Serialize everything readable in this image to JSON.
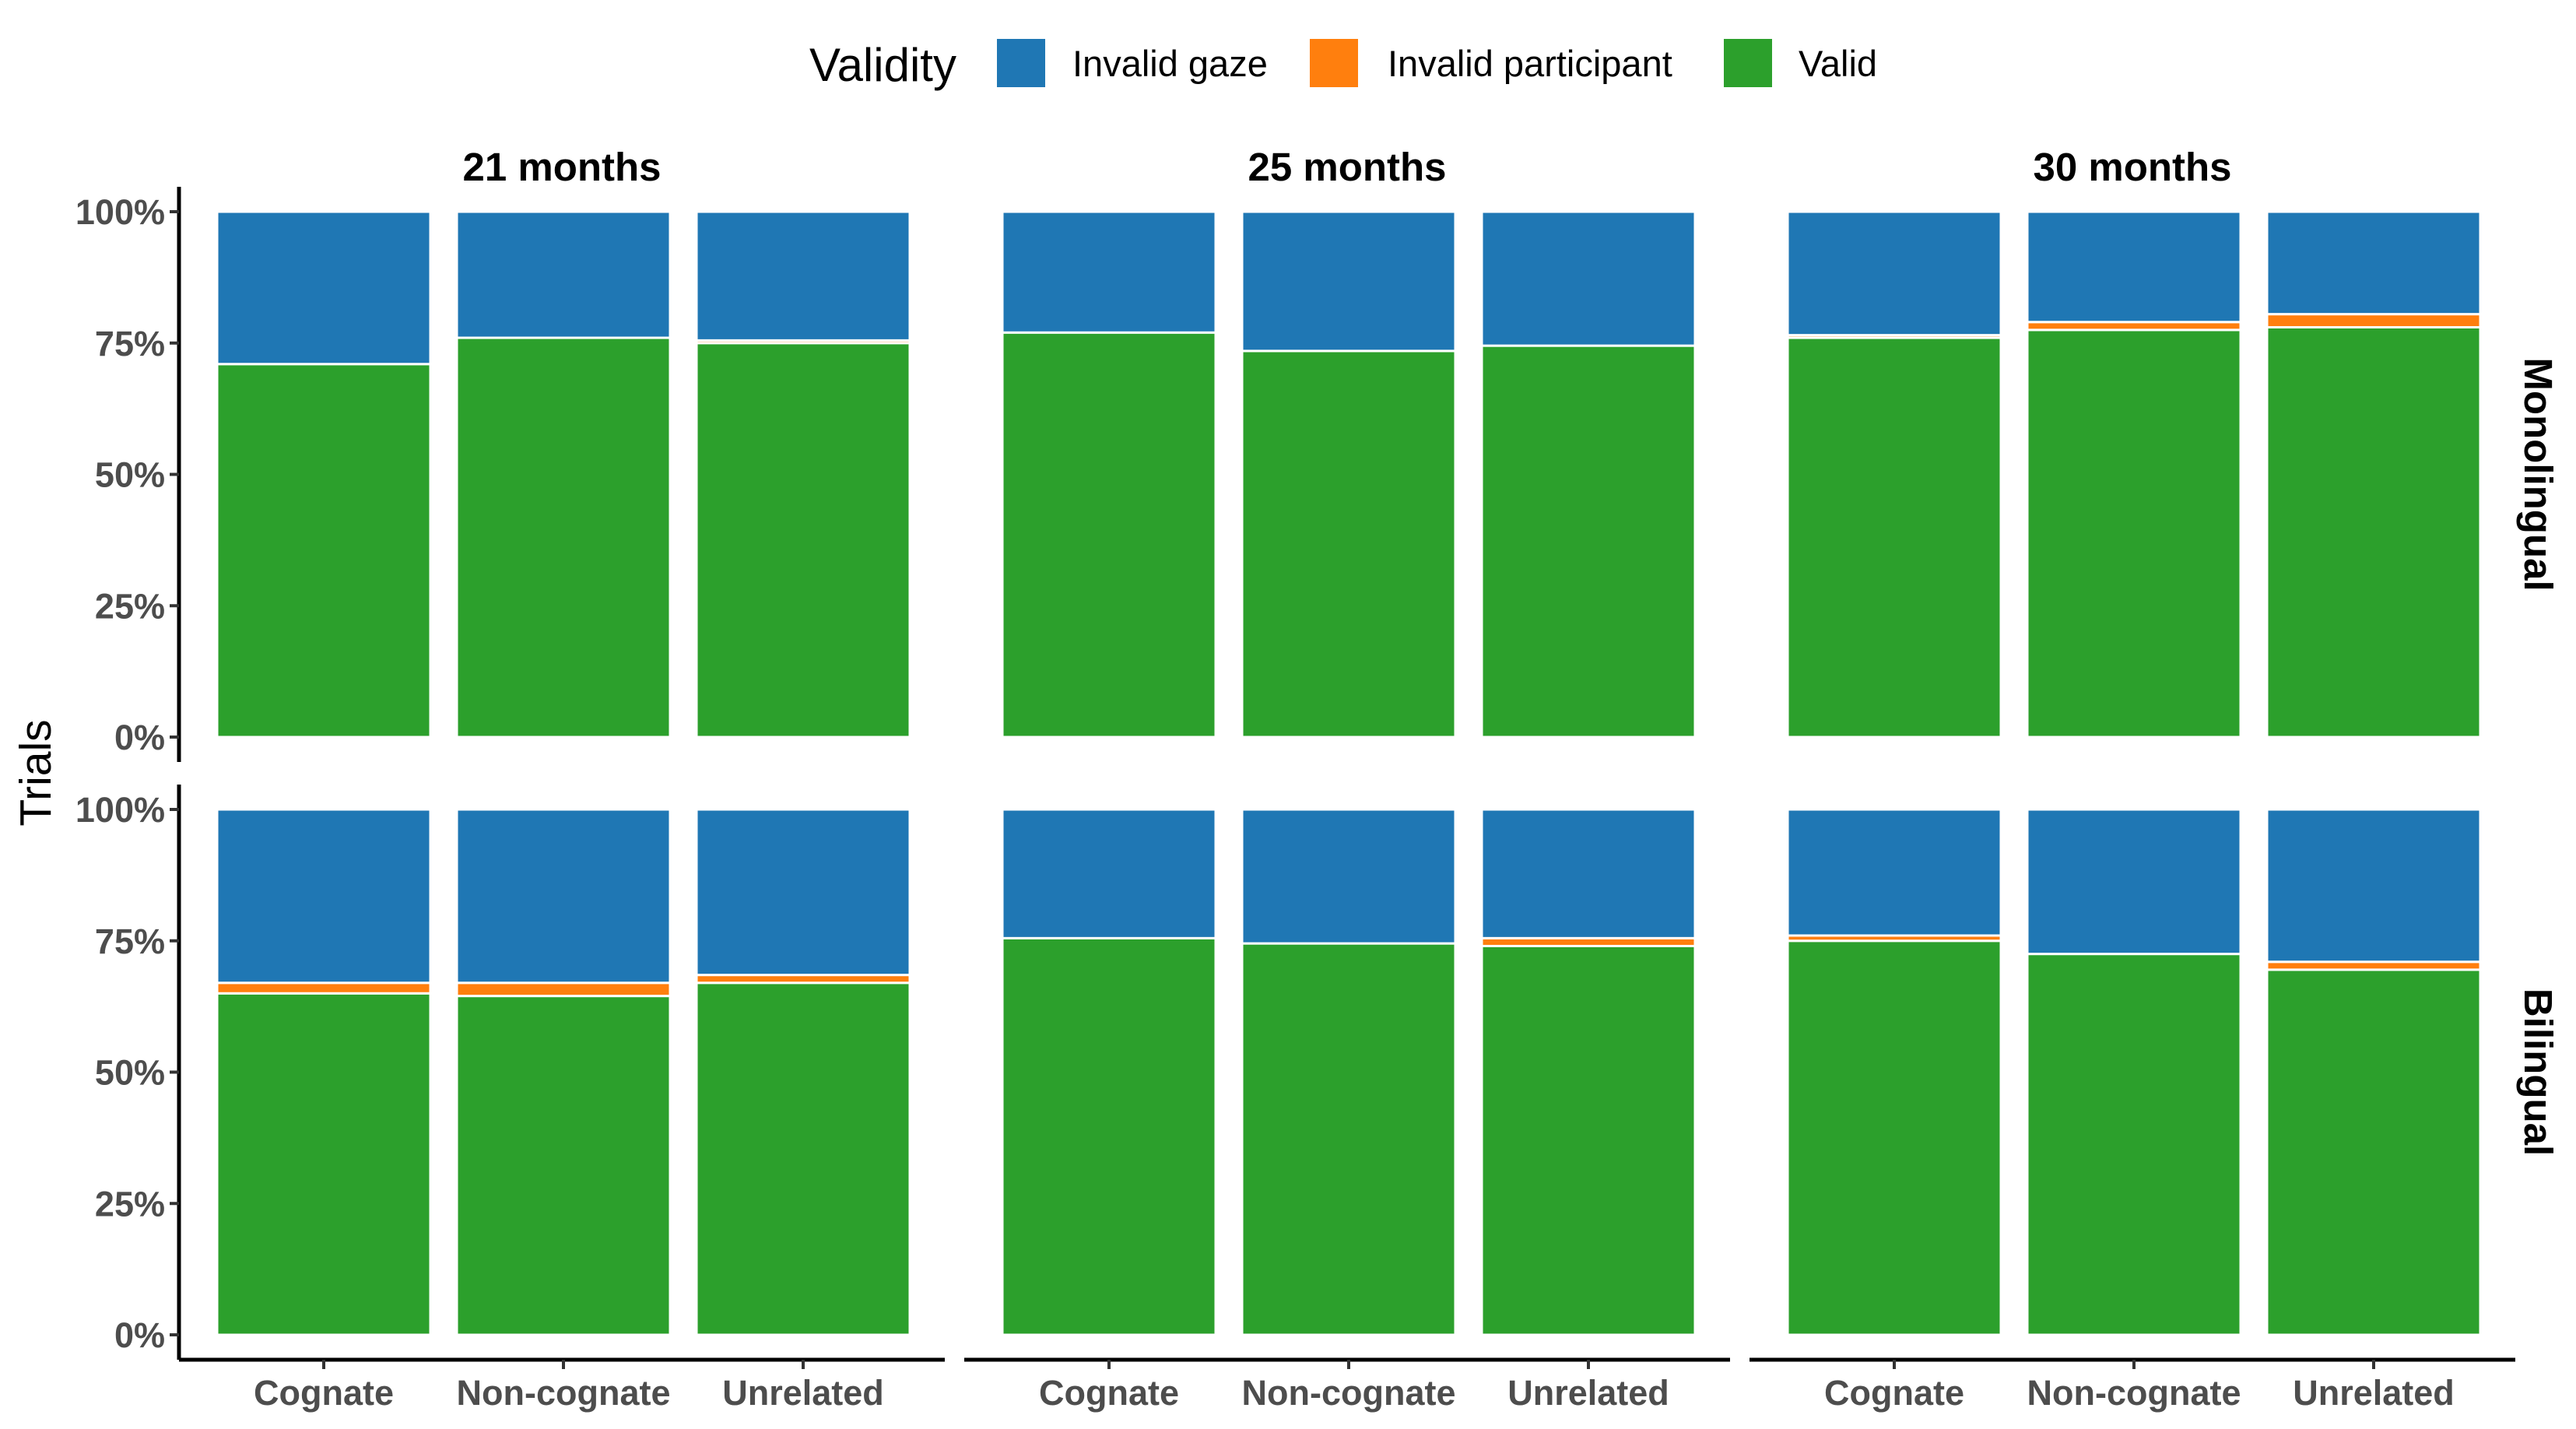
{
  "chart_data": {
    "type": "bar",
    "stacked": true,
    "ylabel": "Trials",
    "xlabel": "",
    "y_ticks": [
      "0%",
      "25%",
      "50%",
      "75%",
      "100%"
    ],
    "ylim": [
      0,
      100
    ],
    "categories": [
      "Cognate",
      "Non-cognate",
      "Unrelated"
    ],
    "column_facets": [
      "21 months",
      "25 months",
      "30 months"
    ],
    "row_facets": [
      "Monolingual",
      "Bilingual"
    ],
    "legend": {
      "title": "Validity",
      "position": "top",
      "entries": [
        {
          "name": "Invalid gaze",
          "color": "#1f77b4"
        },
        {
          "name": "Invalid participant",
          "color": "#ff7f0e"
        },
        {
          "name": "Valid",
          "color": "#2ca02c"
        }
      ]
    },
    "panels": [
      {
        "row": "Monolingual",
        "col": "21 months",
        "series": [
          {
            "name": "Valid",
            "values": [
              71,
              76,
              75
            ]
          },
          {
            "name": "Invalid participant",
            "values": [
              0,
              0,
              0.5
            ]
          },
          {
            "name": "Invalid gaze",
            "values": [
              29,
              24,
              24.5
            ]
          }
        ]
      },
      {
        "row": "Monolingual",
        "col": "25 months",
        "series": [
          {
            "name": "Valid",
            "values": [
              77,
              73.5,
              74.5
            ]
          },
          {
            "name": "Invalid participant",
            "values": [
              0,
              0,
              0
            ]
          },
          {
            "name": "Invalid gaze",
            "values": [
              23,
              26.5,
              25.5
            ]
          }
        ]
      },
      {
        "row": "Monolingual",
        "col": "30 months",
        "series": [
          {
            "name": "Valid",
            "values": [
              76,
              77.5,
              78
            ]
          },
          {
            "name": "Invalid participant",
            "values": [
              0.5,
              1.5,
              2.5
            ]
          },
          {
            "name": "Invalid gaze",
            "values": [
              23.5,
              21,
              19.5
            ]
          }
        ]
      },
      {
        "row": "Bilingual",
        "col": "21 months",
        "series": [
          {
            "name": "Valid",
            "values": [
              65,
              64.5,
              67
            ]
          },
          {
            "name": "Invalid participant",
            "values": [
              2,
              2.5,
              1.5
            ]
          },
          {
            "name": "Invalid gaze",
            "values": [
              33,
              33,
              31.5
            ]
          }
        ]
      },
      {
        "row": "Bilingual",
        "col": "25 months",
        "series": [
          {
            "name": "Valid",
            "values": [
              75.5,
              74.5,
              74
            ]
          },
          {
            "name": "Invalid participant",
            "values": [
              0,
              0,
              1.5
            ]
          },
          {
            "name": "Invalid gaze",
            "values": [
              24.5,
              25.5,
              24.5
            ]
          }
        ]
      },
      {
        "row": "Bilingual",
        "col": "30 months",
        "series": [
          {
            "name": "Valid",
            "values": [
              75,
              72.5,
              69.5
            ]
          },
          {
            "name": "Invalid participant",
            "values": [
              1,
              0,
              1.5
            ]
          },
          {
            "name": "Invalid gaze",
            "values": [
              24,
              27.5,
              29
            ]
          }
        ]
      }
    ]
  }
}
